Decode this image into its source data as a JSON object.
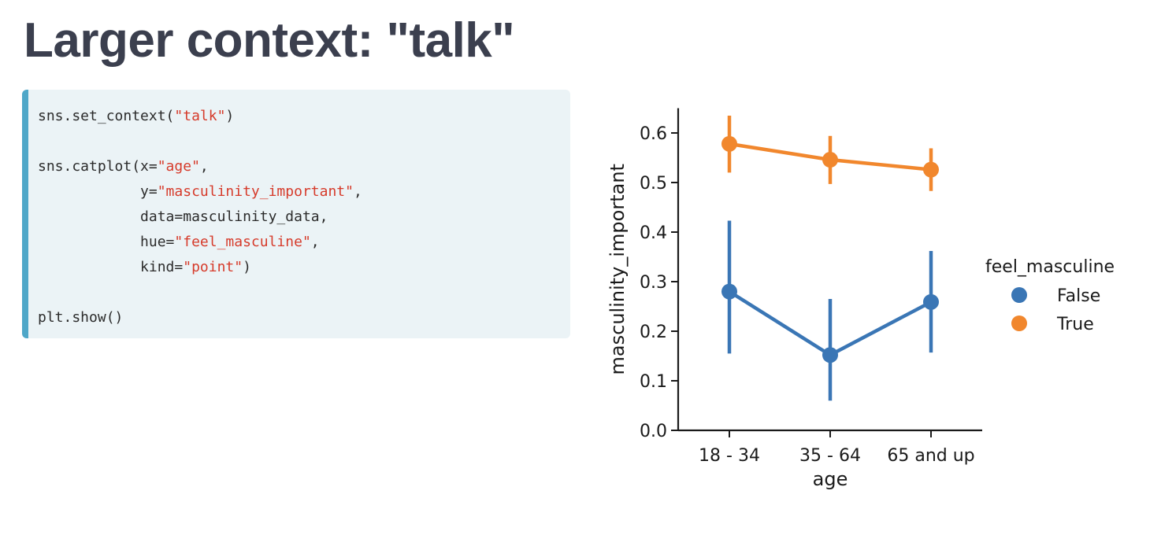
{
  "slide": {
    "title": "Larger context: \"talk\""
  },
  "code": {
    "lines": [
      [
        {
          "t": "sns.set_context("
        },
        {
          "t": "\"talk\"",
          "s": true
        },
        {
          "t": ")"
        }
      ],
      [],
      [
        {
          "t": "sns.catplot(x="
        },
        {
          "t": "\"age\"",
          "s": true
        },
        {
          "t": ","
        }
      ],
      [
        {
          "t": "            y="
        },
        {
          "t": "\"masculinity_important\"",
          "s": true
        },
        {
          "t": ","
        }
      ],
      [
        {
          "t": "            data=masculinity_data,"
        }
      ],
      [
        {
          "t": "            hue="
        },
        {
          "t": "\"feel_masculine\"",
          "s": true
        },
        {
          "t": ","
        }
      ],
      [
        {
          "t": "            kind="
        },
        {
          "t": "\"point\"",
          "s": true
        },
        {
          "t": ")"
        }
      ],
      [],
      [
        {
          "t": "plt.show()"
        }
      ]
    ]
  },
  "chart_data": {
    "type": "point",
    "categories": [
      "18 - 34",
      "35 - 64",
      "65 and up"
    ],
    "xlabel": "age",
    "ylabel": "masculinity_important",
    "ylim": [
      0,
      0.65
    ],
    "yticks": [
      0.0,
      0.1,
      0.2,
      0.3,
      0.4,
      0.5,
      0.6
    ],
    "ytick_labels": [
      "0.0",
      "0.1",
      "0.2",
      "0.3",
      "0.4",
      "0.5",
      "0.6"
    ],
    "grid": false,
    "legend": {
      "title": "feel_masculine",
      "placement": "right, outside plot"
    },
    "series": [
      {
        "name": "False",
        "color": "#3a76b5",
        "values": [
          0.28,
          0.152,
          0.259
        ],
        "ci_low": [
          0.155,
          0.06,
          0.157
        ],
        "ci_high": [
          0.423,
          0.265,
          0.362
        ]
      },
      {
        "name": "True",
        "color": "#f1872d",
        "values": [
          0.578,
          0.546,
          0.526
        ],
        "ci_low": [
          0.52,
          0.497,
          0.483
        ],
        "ci_high": [
          0.635,
          0.594,
          0.569
        ]
      }
    ]
  }
}
